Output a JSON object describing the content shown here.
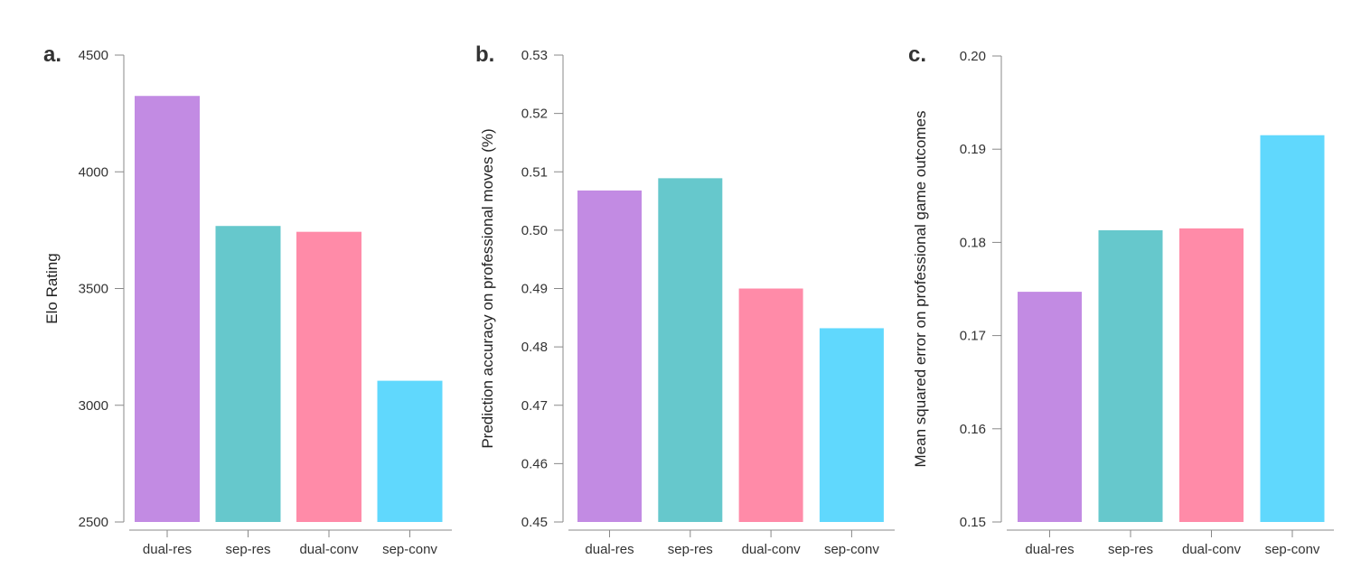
{
  "colors": [
    "#c28be3",
    "#66c8cc",
    "#ff8ba8",
    "#60d8fd"
  ],
  "chart_data": [
    {
      "type": "bar",
      "panel_label": "a.",
      "title": "",
      "xlabel": "",
      "ylabel": "Elo Rating",
      "categories": [
        "dual-res",
        "sep-res",
        "dual-conv",
        "sep-conv"
      ],
      "values": [
        4325,
        3768,
        3743,
        3105
      ],
      "ylim": [
        2500,
        4500
      ],
      "yticks": [
        2500,
        3000,
        3500,
        4000,
        4500
      ],
      "ytick_labels": [
        "2500",
        "3000",
        "3500",
        "4000",
        "4500"
      ],
      "grid": false,
      "legend": "none"
    },
    {
      "type": "bar",
      "panel_label": "b.",
      "title": "",
      "xlabel": "",
      "ylabel": "Prediction accuracy on professional moves (%)",
      "categories": [
        "dual-res",
        "sep-res",
        "dual-conv",
        "sep-conv"
      ],
      "values": [
        0.5068,
        0.5089,
        0.49,
        0.4832
      ],
      "ylim": [
        0.45,
        0.53
      ],
      "yticks": [
        0.45,
        0.46,
        0.47,
        0.48,
        0.49,
        0.5,
        0.51,
        0.52,
        0.53
      ],
      "ytick_labels": [
        "0.45",
        "0.46",
        "0.47",
        "0.48",
        "0.49",
        "0.50",
        "0.51",
        "0.52",
        "0.53"
      ],
      "grid": false,
      "legend": "none"
    },
    {
      "type": "bar",
      "panel_label": "c.",
      "title": "",
      "xlabel": "",
      "ylabel": "Mean squared error on professional game outcomes",
      "categories": [
        "dual-res",
        "sep-res",
        "dual-conv",
        "sep-conv"
      ],
      "values": [
        0.1747,
        0.1813,
        0.1815,
        0.1915
      ],
      "ylim": [
        0.15,
        0.2
      ],
      "yticks": [
        0.15,
        0.16,
        0.17,
        0.18,
        0.19,
        0.2
      ],
      "ytick_labels": [
        "0.15",
        "0.16",
        "0.17",
        "0.18",
        "0.19",
        "0.20"
      ],
      "grid": false,
      "legend": "none"
    }
  ]
}
